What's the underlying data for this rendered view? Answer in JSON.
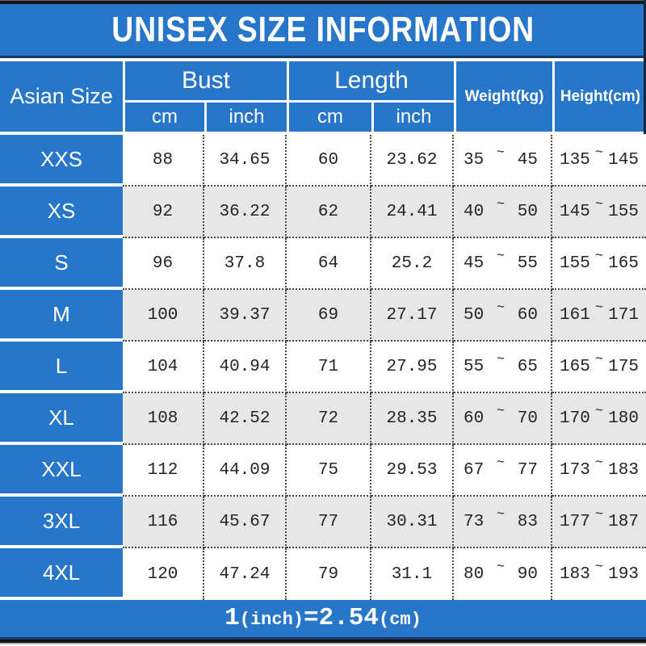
{
  "title": "UNISEX SIZE INFORMATION",
  "table": {
    "size_col_header": "Asian Size",
    "groups": [
      {
        "label": "Bust",
        "sub": [
          "cm",
          "inch"
        ]
      },
      {
        "label": "Length",
        "sub": [
          "cm",
          "inch"
        ]
      }
    ],
    "single_headers": [
      "Weight(kg)",
      "Height(cm)"
    ],
    "tilde": "~",
    "rows": [
      {
        "size": "XXS",
        "bust_cm": "88",
        "bust_inch": "34.65",
        "length_cm": "60",
        "length_inch": "23.62",
        "weight": [
          "35",
          "45"
        ],
        "height": [
          "135",
          "145"
        ]
      },
      {
        "size": "XS",
        "bust_cm": "92",
        "bust_inch": "36.22",
        "length_cm": "62",
        "length_inch": "24.41",
        "weight": [
          "40",
          "50"
        ],
        "height": [
          "145",
          "155"
        ]
      },
      {
        "size": "S",
        "bust_cm": "96",
        "bust_inch": "37.8",
        "length_cm": "64",
        "length_inch": "25.2",
        "weight": [
          "45",
          "55"
        ],
        "height": [
          "155",
          "165"
        ]
      },
      {
        "size": "M",
        "bust_cm": "100",
        "bust_inch": "39.37",
        "length_cm": "69",
        "length_inch": "27.17",
        "weight": [
          "50",
          "60"
        ],
        "height": [
          "161",
          "171"
        ]
      },
      {
        "size": "L",
        "bust_cm": "104",
        "bust_inch": "40.94",
        "length_cm": "71",
        "length_inch": "27.95",
        "weight": [
          "55",
          "65"
        ],
        "height": [
          "165",
          "175"
        ]
      },
      {
        "size": "XL",
        "bust_cm": "108",
        "bust_inch": "42.52",
        "length_cm": "72",
        "length_inch": "28.35",
        "weight": [
          "60",
          "70"
        ],
        "height": [
          "170",
          "180"
        ]
      },
      {
        "size": "XXL",
        "bust_cm": "112",
        "bust_inch": "44.09",
        "length_cm": "75",
        "length_inch": "29.53",
        "weight": [
          "67",
          "77"
        ],
        "height": [
          "173",
          "183"
        ]
      },
      {
        "size": "3XL",
        "bust_cm": "116",
        "bust_inch": "45.67",
        "length_cm": "77",
        "length_inch": "30.31",
        "weight": [
          "73",
          "83"
        ],
        "height": [
          "177",
          "187"
        ]
      },
      {
        "size": "4XL",
        "bust_cm": "120",
        "bust_inch": "47.24",
        "length_cm": "79",
        "length_inch": "31.1",
        "weight": [
          "80",
          "90"
        ],
        "height": [
          "183",
          "193"
        ]
      }
    ]
  },
  "footer": {
    "parts": [
      "1",
      "(inch)",
      "=",
      "2.54",
      "(cm)"
    ]
  },
  "colors": {
    "accent_blue": "#2776c9",
    "row_alt_bg": "#e8e6e9",
    "dotted_border": "#4a4a4a",
    "navy_divider": "#1b3a63",
    "black_bar": "#141414",
    "text_ink": "#242424",
    "header_text": "#ffffff"
  }
}
